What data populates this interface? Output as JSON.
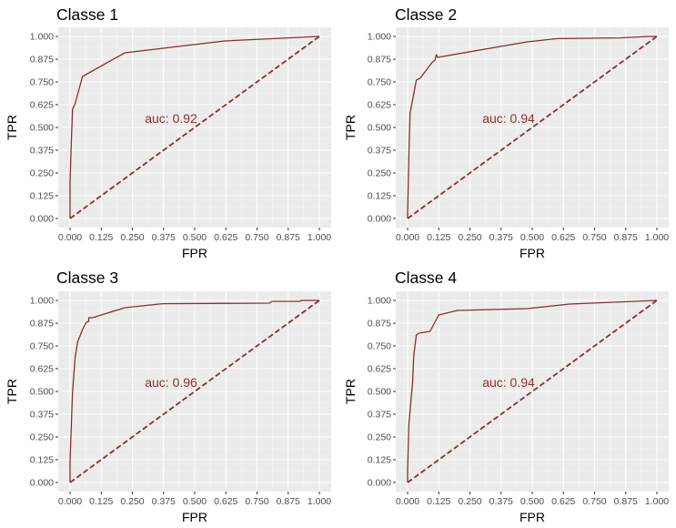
{
  "figure": {
    "background": "#ffffff",
    "panel_background": "#ebebeb",
    "grid_major_color": "#ffffff",
    "curve_color": "#8b2e2e",
    "diagonal_color": "#8b2e2e",
    "diagonal_style": "dashed"
  },
  "chart_data": [
    {
      "type": "line",
      "title": "Classe 1",
      "xlabel": "FPR",
      "ylabel": "TPR",
      "xlim": [
        0,
        1
      ],
      "ylim": [
        0,
        1
      ],
      "xticks": [
        "0.000",
        "0.125",
        "0.250",
        "0.375",
        "0.500",
        "0.625",
        "0.750",
        "0.875",
        "1.000"
      ],
      "yticks": [
        "0.000",
        "0.125",
        "0.250",
        "0.375",
        "0.500",
        "0.625",
        "0.750",
        "0.875",
        "1.000"
      ],
      "grid": true,
      "annotation": "auc: 0.92",
      "series": [
        {
          "x": [
            0.0,
            0.0,
            0.005,
            0.01,
            0.02,
            0.05,
            0.22,
            0.62,
            1.0
          ],
          "y": [
            0.0,
            0.2,
            0.42,
            0.6,
            0.63,
            0.78,
            0.91,
            0.975,
            1.0
          ]
        },
        {
          "x": [
            0,
            1
          ],
          "y": [
            0,
            1
          ]
        }
      ]
    },
    {
      "type": "line",
      "title": "Classe 2",
      "xlabel": "FPR",
      "ylabel": "TPR",
      "xlim": [
        0,
        1
      ],
      "ylim": [
        0,
        1
      ],
      "xticks": [
        "0.000",
        "0.125",
        "0.250",
        "0.375",
        "0.500",
        "0.625",
        "0.750",
        "0.875",
        "1.000"
      ],
      "yticks": [
        "0.000",
        "0.125",
        "0.250",
        "0.375",
        "0.500",
        "0.625",
        "0.750",
        "0.875",
        "1.000"
      ],
      "grid": true,
      "annotation": "auc: 0.94",
      "series": [
        {
          "x": [
            0.0,
            0.0,
            0.005,
            0.01,
            0.02,
            0.035,
            0.05,
            0.1,
            0.11,
            0.115,
            0.12,
            0.48,
            0.6,
            0.85,
            0.97,
            1.0
          ],
          "y": [
            0.0,
            0.02,
            0.35,
            0.58,
            0.65,
            0.76,
            0.77,
            0.86,
            0.87,
            0.9,
            0.885,
            0.97,
            0.988,
            0.992,
            1.0,
            1.0
          ]
        },
        {
          "x": [
            0,
            1
          ],
          "y": [
            0,
            1
          ]
        }
      ]
    },
    {
      "type": "line",
      "title": "Classe 3",
      "xlabel": "FPR",
      "ylabel": "TPR",
      "xlim": [
        0,
        1
      ],
      "ylim": [
        0,
        1
      ],
      "xticks": [
        "0.000",
        "0.125",
        "0.250",
        "0.375",
        "0.500",
        "0.625",
        "0.750",
        "0.875",
        "1.000"
      ],
      "yticks": [
        "0.000",
        "0.125",
        "0.250",
        "0.375",
        "0.500",
        "0.625",
        "0.750",
        "0.875",
        "1.000"
      ],
      "grid": true,
      "annotation": "auc: 0.96",
      "series": [
        {
          "x": [
            0.0,
            0.0,
            0.01,
            0.02,
            0.03,
            0.05,
            0.065,
            0.075,
            0.075,
            0.09,
            0.22,
            0.37,
            0.8,
            0.81,
            0.92,
            0.93,
            1.0
          ],
          "y": [
            0.0,
            0.12,
            0.5,
            0.68,
            0.77,
            0.84,
            0.88,
            0.885,
            0.905,
            0.905,
            0.96,
            0.982,
            0.985,
            0.995,
            0.995,
            1.0,
            1.0
          ]
        },
        {
          "x": [
            0,
            1
          ],
          "y": [
            0,
            1
          ]
        }
      ]
    },
    {
      "type": "line",
      "title": "Classe 4",
      "xlabel": "FPR",
      "ylabel": "TPR",
      "xlim": [
        0,
        1
      ],
      "ylim": [
        0,
        1
      ],
      "xticks": [
        "0.000",
        "0.125",
        "0.250",
        "0.375",
        "0.500",
        "0.625",
        "0.750",
        "0.875",
        "1.000"
      ],
      "yticks": [
        "0.000",
        "0.125",
        "0.250",
        "0.375",
        "0.500",
        "0.625",
        "0.750",
        "0.875",
        "1.000"
      ],
      "grid": true,
      "annotation": "auc: 0.94",
      "series": [
        {
          "x": [
            0.0,
            0.0,
            0.005,
            0.02,
            0.025,
            0.035,
            0.045,
            0.09,
            0.125,
            0.14,
            0.2,
            0.48,
            0.65,
            1.0
          ],
          "y": [
            0.0,
            0.07,
            0.32,
            0.55,
            0.7,
            0.81,
            0.82,
            0.83,
            0.92,
            0.925,
            0.945,
            0.955,
            0.98,
            1.0
          ]
        },
        {
          "x": [
            0,
            1
          ],
          "y": [
            0,
            1
          ]
        }
      ]
    }
  ]
}
